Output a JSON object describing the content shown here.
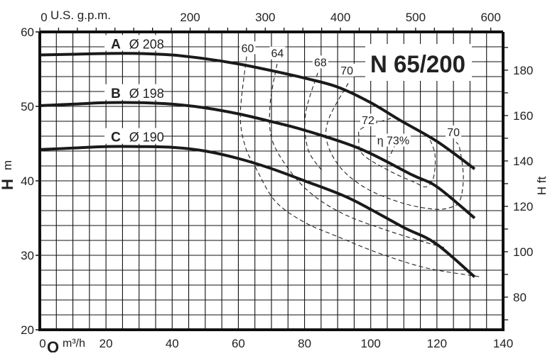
{
  "chart_data": {
    "type": "line",
    "title": "N 65/200",
    "xlabel": "Q",
    "xunit": "m³/h",
    "ylabel": "H",
    "yunit": "m",
    "y2label": "H ft",
    "x2label": "U.S. g.p.m.",
    "xlim": [
      0,
      140
    ],
    "ylim": [
      20,
      60
    ],
    "grid": true,
    "x_ticks": [
      0,
      20,
      40,
      60,
      80,
      100,
      120,
      140
    ],
    "y_ticks": [
      20,
      30,
      40,
      50,
      60
    ],
    "y2_ticks": [
      80,
      100,
      120,
      140,
      160,
      180
    ],
    "x2_ticks": [
      0,
      200,
      300,
      400,
      500,
      600
    ],
    "series": [
      {
        "name": "A",
        "label": "Ø 208",
        "x": [
          0,
          10,
          20,
          30,
          40,
          50,
          60,
          70,
          80,
          90,
          100,
          109,
          120,
          131.4
        ],
        "y": [
          56.9,
          57.0,
          57.1,
          57.1,
          56.9,
          56.4,
          55.7,
          54.8,
          53.8,
          52.6,
          50.5,
          48.1,
          45.3,
          41.6
        ]
      },
      {
        "name": "B",
        "label": "Ø 198",
        "x": [
          0,
          10,
          20,
          30,
          40,
          50,
          60,
          69.6,
          80,
          96.8,
          112.5,
          120,
          131.4
        ],
        "y": [
          50.1,
          50.3,
          50.5,
          50.5,
          50.3,
          49.8,
          49.0,
          48.0,
          46.8,
          44.3,
          40.8,
          39.2,
          35.0
        ]
      },
      {
        "name": "C",
        "label": "Ø 190",
        "x": [
          0,
          10,
          20,
          30,
          40,
          50,
          60,
          69.6,
          80,
          93.8,
          109.7,
          119.6,
          131.4
        ],
        "y": [
          44.2,
          44.4,
          44.6,
          44.6,
          44.5,
          44.0,
          43.0,
          41.7,
          40.0,
          37.6,
          33.8,
          31.6,
          27.1
        ]
      }
    ],
    "efficiency_curves": [
      {
        "label": "60",
        "x": [
          62.5,
          60.6,
          62.1,
          65.3,
          71.1,
          79.7,
          89.5,
          102.4,
          116.8,
          133.3
        ],
        "y": [
          56.7,
          49.0,
          44.6,
          41.7,
          37.3,
          34.5,
          32.6,
          30.3,
          28.3,
          27.1
        ]
      },
      {
        "label": "64",
        "x": [
          71.7,
          69.6,
          70.2,
          76.0,
          83.1,
          92.5,
          103.9,
          115.3,
          122.6
        ],
        "y": [
          55.7,
          50.3,
          45.5,
          41.1,
          37.9,
          35.4,
          33.5,
          31.9,
          31.0
        ]
      },
      {
        "label": "68",
        "x": [
          84.0,
          80.3,
          81.0,
          85.2
        ],
        "y": [
          54.5,
          49.0,
          44.3,
          41.4
        ]
      },
      {
        "label": "70",
        "x": [
          93.2,
          87.4,
          86.8,
          91.0,
          99.0,
          109.7,
          119.0,
          123.9,
          126.9,
          128.0,
          126.9,
          125.8
        ],
        "y": [
          53.1,
          48.4,
          45.2,
          41.7,
          38.9,
          37.0,
          36.2,
          36.4,
          37.3,
          40.5,
          44.3,
          45.2
        ]
      },
      {
        "label": "72",
        "x": [
          106.1,
          97.5,
          96.4,
          97.5,
          105.4,
          113.2,
          116.8,
          119.0,
          119.4,
          117.5
        ],
        "y": [
          48.4,
          47.1,
          45.9,
          43.6,
          41.4,
          39.8,
          39.2,
          40.5,
          43.6,
          45.9
        ]
      },
      {
        "label": "η 73%",
        "x": [
          107.6,
          105.6
        ],
        "y": [
          45.0,
          43.2
        ]
      }
    ],
    "efficiency_labels": [
      {
        "text": "60",
        "x": 62.8,
        "y": 57.3
      },
      {
        "text": "64",
        "x": 71.8,
        "y": 56.6
      },
      {
        "text": "68",
        "x": 84.8,
        "y": 55.4
      },
      {
        "text": "70",
        "x": 92.8,
        "y": 54.3
      },
      {
        "text": "72",
        "x": 99.2,
        "y": 47.6
      },
      {
        "text": "η 73%",
        "x": 106.8,
        "y": 44.9
      },
      {
        "text": "70",
        "x": 125.0,
        "y": 46.0
      }
    ]
  }
}
